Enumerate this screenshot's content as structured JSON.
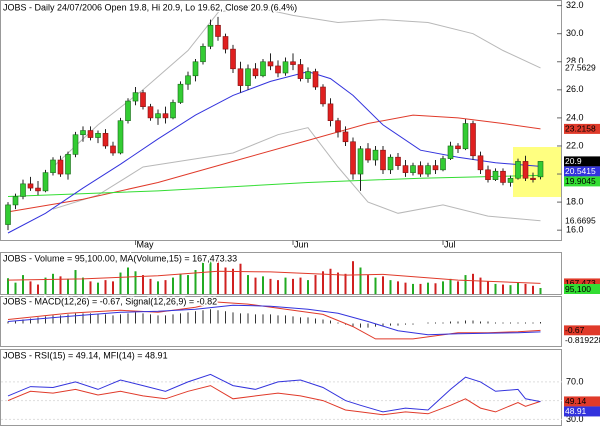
{
  "chart_data": [
    {
      "type": "candlestick",
      "title": "JOBS - Daily 24/07/2006 Open 19.8, Hi 20.9, Lo 19.62, Close 20.9 (6.4%)",
      "categories": [
        null,
        null,
        null,
        null,
        null,
        null,
        null,
        null,
        null,
        null,
        null,
        null,
        null,
        null,
        null,
        null,
        null,
        "May",
        null,
        null,
        null,
        null,
        null,
        null,
        null,
        null,
        null,
        null,
        null,
        null,
        null,
        null,
        null,
        null,
        null,
        null,
        null,
        null,
        "Jun",
        null,
        null,
        null,
        null,
        null,
        null,
        null,
        null,
        null,
        null,
        null,
        null,
        null,
        null,
        null,
        null,
        null,
        null,
        null,
        "Jul",
        null,
        null,
        null,
        null,
        null,
        null,
        null,
        null,
        null,
        null,
        null,
        null,
        null
      ],
      "ohlc": [
        [
          16.4,
          18.0,
          16.0,
          17.8
        ],
        [
          17.8,
          18.6,
          17.5,
          18.4
        ],
        [
          18.4,
          19.6,
          18.2,
          19.3
        ],
        [
          19.3,
          19.8,
          18.8,
          19.0
        ],
        [
          19.0,
          19.5,
          18.5,
          18.8
        ],
        [
          18.8,
          20.3,
          18.7,
          20.1
        ],
        [
          20.1,
          21.2,
          19.9,
          21.0
        ],
        [
          21.0,
          21.3,
          19.8,
          20.0
        ],
        [
          20.0,
          21.6,
          19.6,
          21.4
        ],
        [
          21.4,
          23.0,
          21.2,
          22.8
        ],
        [
          22.8,
          23.4,
          22.3,
          23.1
        ],
        [
          23.1,
          23.4,
          22.4,
          22.6
        ],
        [
          22.6,
          23.1,
          22.2,
          22.9
        ],
        [
          22.9,
          23.2,
          21.8,
          22.0
        ],
        [
          22.0,
          22.3,
          21.3,
          21.5
        ],
        [
          21.5,
          24.0,
          21.4,
          23.8
        ],
        [
          23.8,
          25.4,
          23.6,
          25.2
        ],
        [
          25.2,
          26.2,
          24.9,
          25.8
        ],
        [
          25.8,
          26.0,
          24.6,
          24.8
        ],
        [
          24.8,
          25.0,
          23.8,
          24.0
        ],
        [
          24.0,
          24.6,
          23.5,
          24.3
        ],
        [
          24.3,
          24.8,
          23.6,
          24.0
        ],
        [
          24.0,
          25.3,
          23.9,
          25.1
        ],
        [
          25.1,
          26.6,
          25.0,
          26.4
        ],
        [
          26.4,
          27.3,
          26.0,
          27.0
        ],
        [
          27.0,
          28.2,
          26.6,
          28.0
        ],
        [
          28.0,
          29.3,
          27.8,
          29.1
        ],
        [
          29.1,
          31.0,
          28.9,
          30.6
        ],
        [
          30.6,
          31.2,
          29.5,
          29.8
        ],
        [
          29.8,
          30.0,
          28.6,
          28.9
        ],
        [
          28.9,
          29.2,
          27.2,
          27.5
        ],
        [
          27.5,
          28.0,
          25.8,
          26.3
        ],
        [
          26.3,
          27.8,
          26.0,
          27.5
        ],
        [
          27.5,
          27.9,
          26.8,
          27.0
        ],
        [
          27.0,
          28.2,
          26.9,
          28.0
        ],
        [
          28.0,
          28.6,
          27.4,
          27.7
        ],
        [
          27.7,
          28.1,
          26.9,
          27.2
        ],
        [
          27.2,
          28.3,
          27.0,
          28.0
        ],
        [
          28.0,
          28.6,
          27.4,
          27.8
        ],
        [
          27.8,
          28.2,
          26.6,
          26.8
        ],
        [
          26.8,
          27.6,
          26.5,
          27.3
        ],
        [
          27.3,
          27.5,
          26.0,
          26.2
        ],
        [
          26.2,
          26.4,
          24.8,
          25.0
        ],
        [
          25.0,
          25.4,
          23.4,
          23.8
        ],
        [
          23.8,
          24.0,
          22.6,
          23.0
        ],
        [
          23.0,
          23.4,
          22.0,
          22.3
        ],
        [
          22.3,
          22.6,
          19.6,
          20.0
        ],
        [
          20.0,
          22.0,
          18.8,
          21.8
        ],
        [
          21.8,
          22.2,
          20.8,
          21.0
        ],
        [
          21.0,
          22.0,
          20.6,
          21.7
        ],
        [
          21.7,
          22.0,
          20.0,
          20.3
        ],
        [
          20.3,
          21.4,
          20.0,
          21.2
        ],
        [
          21.2,
          21.5,
          20.3,
          20.6
        ],
        [
          20.6,
          21.0,
          19.8,
          20.1
        ],
        [
          20.1,
          20.8,
          19.9,
          20.6
        ],
        [
          20.6,
          20.9,
          19.8,
          20.0
        ],
        [
          20.0,
          20.8,
          19.8,
          20.6
        ],
        [
          20.6,
          21.0,
          20.0,
          20.3
        ],
        [
          20.3,
          21.3,
          20.2,
          21.1
        ],
        [
          21.1,
          22.3,
          21.0,
          22.0
        ],
        [
          22.0,
          22.2,
          21.5,
          21.8
        ],
        [
          21.8,
          23.9,
          21.7,
          23.6
        ],
        [
          23.6,
          23.8,
          21.0,
          21.3
        ],
        [
          21.3,
          21.6,
          20.0,
          20.3
        ],
        [
          20.3,
          20.6,
          19.4,
          19.6
        ],
        [
          19.6,
          20.4,
          19.5,
          20.2
        ],
        [
          20.2,
          20.4,
          19.2,
          19.4
        ],
        [
          19.4,
          19.9,
          19.1,
          19.7
        ],
        [
          19.7,
          21.1,
          19.6,
          20.9
        ],
        [
          20.9,
          21.3,
          19.5,
          19.7
        ],
        [
          19.7,
          20.1,
          19.4,
          19.6
        ],
        [
          19.8,
          20.9,
          19.62,
          20.9
        ]
      ],
      "up_color": "#33cc33",
      "down_color": "#e02020",
      "close_tag": {
        "bg": "#000000",
        "fg": "#ffffff"
      },
      "ylim": [
        15.3,
        32.4
      ],
      "yticks": [
        {
          "value": 16,
          "label": "16.0"
        },
        {
          "value": 18,
          "label": "18.0"
        },
        {
          "value": 20,
          "label": "20.0"
        },
        {
          "value": 22,
          "label": "22.0"
        },
        {
          "value": 24,
          "label": "24.0"
        },
        {
          "value": 26,
          "label": "26.0"
        },
        {
          "value": 28,
          "label": "28.0"
        },
        {
          "value": 30,
          "label": "30.0"
        },
        {
          "value": 32,
          "label": "32.0"
        }
      ],
      "series": [
        {
          "color": "#b8b8b8",
          "tag": {
            "bg": "#ffffff",
            "fg": "#000000"
          },
          "x": [
            6,
            12,
            18,
            24,
            28,
            32,
            38,
            44,
            50,
            56,
            62,
            66,
            71
          ],
          "values": [
            20.5,
            23.5,
            26.0,
            28.8,
            31.5,
            32.0,
            31.3,
            30.8,
            31.0,
            30.8,
            30.0,
            28.8,
            27.5629
          ]
        },
        {
          "color": "#b8b8b8",
          "tag": {
            "bg": "#ffffff",
            "fg": "#000000"
          },
          "x": [
            6,
            12,
            18,
            24,
            30,
            36,
            40,
            44,
            48,
            52,
            58,
            64,
            71
          ],
          "values": [
            17.5,
            18.5,
            20.5,
            21.0,
            21.5,
            22.8,
            23.3,
            20.5,
            18.0,
            17.2,
            17.8,
            17.0,
            16.6695
          ]
        },
        {
          "color": "#e03a2a",
          "tag": {
            "bg": "#e03a2a",
            "fg": "#000000"
          },
          "x": [
            0,
            10,
            20,
            30,
            40,
            48,
            54,
            60,
            66,
            71
          ],
          "values": [
            17.3,
            18.2,
            19.4,
            20.9,
            22.4,
            23.6,
            24.2,
            24.0,
            23.6,
            23.2158
          ]
        },
        {
          "color": "#33dd33",
          "tag": {
            "bg": "#33dd33",
            "fg": "#000000"
          },
          "x": [
            0,
            20,
            40,
            55,
            71
          ],
          "values": [
            18.4,
            18.8,
            19.4,
            19.7,
            19.9045
          ]
        },
        {
          "color": "#3333dd",
          "tag": {
            "bg": "#3333dd",
            "fg": "#ffffff"
          },
          "x": [
            0,
            5,
            10,
            15,
            20,
            25,
            30,
            35,
            40,
            43,
            46,
            50,
            55,
            60,
            65,
            71
          ],
          "values": [
            15.8,
            17.2,
            19.0,
            20.7,
            22.5,
            24.2,
            25.6,
            26.6,
            27.3,
            26.8,
            25.6,
            23.5,
            21.7,
            21.2,
            20.8,
            20.5415
          ]
        }
      ]
    },
    {
      "type": "bar",
      "title": "JOBS - Volume = 95,100.00, MA(Volume,15) = 167,473.33",
      "ylim": [
        0,
        650000
      ],
      "tag": {
        "bg": "#33dd33",
        "fg": "#000000"
      },
      "values": [
        250000,
        180000,
        300000,
        200000,
        150000,
        260000,
        320000,
        280000,
        240000,
        380000,
        260000,
        200000,
        180000,
        220000,
        200000,
        340000,
        420000,
        360000,
        300000,
        240000,
        200000,
        220000,
        260000,
        320000,
        300000,
        380000,
        520000,
        600000,
        560000,
        420000,
        400000,
        480000,
        300000,
        260000,
        280000,
        240000,
        220000,
        260000,
        240000,
        260000,
        220000,
        300000,
        360000,
        400000,
        340000,
        320000,
        520000,
        420000,
        300000,
        260000,
        280000,
        220000,
        200000,
        180000,
        160000,
        160000,
        180000,
        170000,
        200000,
        240000,
        200000,
        300000,
        320000,
        260000,
        200000,
        160000,
        150000,
        140000,
        180000,
        160000,
        130000,
        95100
      ],
      "value_labels": [
        null,
        null,
        null,
        null,
        null,
        null,
        null,
        null,
        null,
        null,
        null,
        null,
        null,
        null,
        null,
        null,
        null,
        null,
        null,
        null,
        null,
        null,
        null,
        null,
        null,
        null,
        null,
        null,
        null,
        null,
        null,
        null,
        null,
        null,
        null,
        null,
        null,
        null,
        null,
        null,
        null,
        null,
        null,
        null,
        null,
        null,
        null,
        null,
        null,
        null,
        null,
        null,
        null,
        null,
        null,
        null,
        null,
        null,
        null,
        null,
        null,
        null,
        null,
        null,
        null,
        null,
        null,
        null,
        null,
        null,
        null,
        "95,100"
      ],
      "series": [
        {
          "color": "#e03a2a",
          "tag": {
            "bg": "#e03a2a",
            "fg": "#000000"
          },
          "x": [
            0,
            10,
            20,
            28,
            35,
            45,
            50,
            60,
            71
          ],
          "values": [
            220000,
            240000,
            290000,
            360000,
            350000,
            300000,
            310000,
            220000,
            167473.33
          ],
          "value_labels": [
            null,
            null,
            null,
            null,
            null,
            null,
            null,
            null,
            "167,473"
          ]
        }
      ]
    },
    {
      "type": "line",
      "title": "JOBS - MACD(12,26) = -0.67, Signal(12,26,9) = -0.82",
      "ylim": [
        -2.2,
        2.6
      ],
      "histogram": [
        0.2,
        0.3,
        0.4,
        0.5,
        0.6,
        0.7,
        0.8,
        0.8,
        0.9,
        1.0,
        1.0,
        1.0,
        0.9,
        0.9,
        0.8,
        0.9,
        1.0,
        1.1,
        1.0,
        0.9,
        0.8,
        0.8,
        0.9,
        1.0,
        1.1,
        1.2,
        1.3,
        1.4,
        1.3,
        1.2,
        1.1,
        1.0,
        1.0,
        0.9,
        0.9,
        0.9,
        0.8,
        0.8,
        0.7,
        0.6,
        0.6,
        0.5,
        0.4,
        0.3,
        0.1,
        -0.1,
        -0.3,
        -0.4,
        -0.4,
        -0.3,
        -0.3,
        -0.2,
        -0.2,
        -0.1,
        -0.1,
        0.0,
        0.1,
        0.1,
        0.1,
        0.2,
        0.2,
        0.3,
        0.3,
        0.2,
        0.2,
        0.1,
        0.1,
        0.1,
        0.1,
        0.1,
        0.1,
        0.15
      ],
      "histogram_color": "#333333",
      "series": [
        {
          "color": "#e03a2a",
          "tag": {
            "bg": "#e03a2a",
            "fg": "#000000"
          },
          "x": [
            0,
            8,
            15,
            20,
            25,
            28,
            32,
            38,
            42,
            46,
            49,
            54,
            60,
            64,
            68,
            71
          ],
          "values": [
            0.4,
            1.0,
            1.3,
            1.1,
            1.6,
            2.1,
            1.9,
            1.3,
            0.9,
            -0.3,
            -1.5,
            -1.5,
            -0.9,
            -0.9,
            -0.8,
            -0.67
          ]
        },
        {
          "color": "#3333dd",
          "tag": {
            "bg": "#ffffff",
            "fg": "#000000"
          },
          "x": [
            0,
            8,
            15,
            20,
            25,
            30,
            35,
            40,
            44,
            48,
            52,
            56,
            60,
            64,
            68,
            71
          ],
          "values": [
            0.2,
            0.7,
            1.1,
            1.2,
            1.4,
            1.8,
            1.7,
            1.4,
            1.0,
            0.2,
            -0.7,
            -1.1,
            -1.0,
            -0.95,
            -0.9,
            -0.819228
          ]
        }
      ]
    },
    {
      "type": "line",
      "title": "JOBS - RSI(15) = 49.14, MFI(14) = 48.91",
      "ylim": [
        24,
        104
      ],
      "yticks": [
        {
          "value": 30,
          "label": "30.0"
        },
        {
          "value": 50,
          "label": "50.0"
        },
        {
          "value": 70,
          "label": "70.0"
        }
      ],
      "grid": true,
      "series": [
        {
          "color": "#e03a2a",
          "tag": {
            "bg": "#e03a2a",
            "fg": "#000000"
          },
          "x": [
            0,
            3,
            6,
            9,
            12,
            15,
            18,
            21,
            24,
            27,
            30,
            33,
            36,
            39,
            42,
            45,
            47,
            50,
            53,
            56,
            59,
            61,
            63,
            65,
            68,
            69,
            71
          ],
          "values": [
            50,
            60,
            58,
            62,
            56,
            60,
            55,
            52,
            60,
            66,
            52,
            55,
            58,
            55,
            50,
            40,
            38,
            35,
            38,
            36,
            45,
            52,
            42,
            38,
            48,
            44,
            49.14
          ]
        },
        {
          "color": "#3333dd",
          "tag": {
            "bg": "#3333dd",
            "fg": "#ffffff"
          },
          "x": [
            0,
            3,
            6,
            9,
            12,
            15,
            18,
            21,
            24,
            27,
            30,
            33,
            36,
            39,
            42,
            45,
            47,
            50,
            53,
            56,
            59,
            61,
            63,
            65,
            68,
            69,
            71
          ],
          "values": [
            55,
            65,
            64,
            70,
            62,
            72,
            66,
            60,
            70,
            78,
            66,
            62,
            70,
            72,
            64,
            50,
            45,
            38,
            42,
            40,
            62,
            75,
            70,
            60,
            62,
            52,
            48.91
          ]
        }
      ]
    }
  ]
}
